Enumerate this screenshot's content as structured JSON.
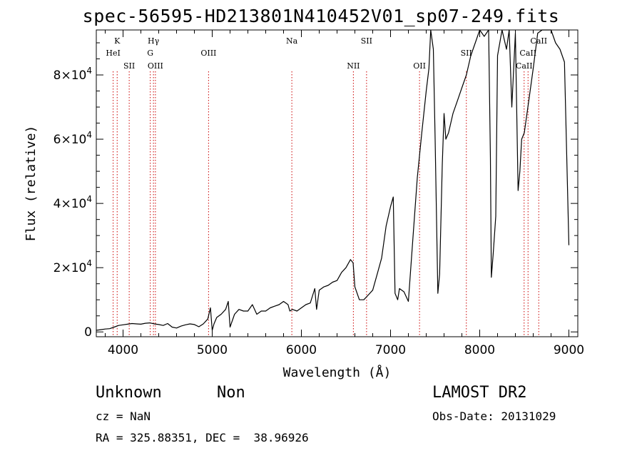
{
  "header": {
    "title": "spec-56595-HD213801N410452V01_sp07-249.fits"
  },
  "info": {
    "class_name": "Unknown",
    "subclass": "Non",
    "survey": "LAMOST DR2",
    "cz": "cz = NaN",
    "obs_date": "Obs-Date: 20131029",
    "coords": "RA = 325.88351, DEC =  38.96926"
  },
  "chart_data": {
    "type": "line",
    "title": "spec-56595-HD213801N410452V01_sp07-249.fits",
    "xlabel": "Wavelength (Å)",
    "ylabel": "Flux (relative)",
    "xlim": [
      3700,
      9100
    ],
    "ylim": [
      -1500,
      94000
    ],
    "grid": false,
    "x_ticks": [
      {
        "value": 4000,
        "label": "4000"
      },
      {
        "value": 5000,
        "label": "5000"
      },
      {
        "value": 6000,
        "label": "6000"
      },
      {
        "value": 7000,
        "label": "7000"
      },
      {
        "value": 8000,
        "label": "8000"
      },
      {
        "value": 9000,
        "label": "9000"
      }
    ],
    "y_ticks": [
      {
        "value": 0,
        "mant": "0",
        "exp": ""
      },
      {
        "value": 20000,
        "mant": "2×10",
        "exp": "4"
      },
      {
        "value": 40000,
        "mant": "4×10",
        "exp": "4"
      },
      {
        "value": 60000,
        "mant": "6×10",
        "exp": "4"
      },
      {
        "value": 80000,
        "mant": "8×10",
        "exp": "4"
      }
    ],
    "lines": [
      {
        "name": "K",
        "x": 3934,
        "row": 0
      },
      {
        "name": "HeI",
        "x": 3889,
        "row": 1
      },
      {
        "name": "SII",
        "x": 4069,
        "row": 2
      },
      {
        "name": "Hγ",
        "x": 4341,
        "row": 0
      },
      {
        "name": "G",
        "x": 4305,
        "row": 1
      },
      {
        "name": "OIII",
        "x": 4363,
        "row": 2
      },
      {
        "name": "OIII",
        "x": 4959,
        "row": 1
      },
      {
        "name": "Na",
        "x": 5893,
        "row": 0
      },
      {
        "name": "NII",
        "x": 6583,
        "row": 2
      },
      {
        "name": "SII",
        "x": 6731,
        "row": 0
      },
      {
        "name": "OII",
        "x": 7325,
        "row": 2
      },
      {
        "name": "SII",
        "x": 7850,
        "row": 1
      },
      {
        "name": "CaII",
        "x": 8498,
        "row": 2
      },
      {
        "name": "CaII",
        "x": 8542,
        "row": 1
      },
      {
        "name": "CaII",
        "x": 8662,
        "row": 0
      }
    ],
    "series": [
      {
        "x": [
          3700,
          3750,
          3800,
          3850,
          3900,
          3950,
          4000,
          4050,
          4100,
          4150,
          4200,
          4250,
          4300,
          4350,
          4400,
          4450,
          4500,
          4550,
          4600,
          4650,
          4700,
          4750,
          4800,
          4850,
          4900,
          4950,
          4980,
          5000,
          5020,
          5050,
          5100,
          5150,
          5180,
          5200,
          5250,
          5300,
          5350,
          5400,
          5450,
          5500,
          5550,
          5600,
          5650,
          5700,
          5750,
          5800,
          5850,
          5870,
          5900,
          5950,
          6000,
          6050,
          6100,
          6150,
          6170,
          6200,
          6250,
          6300,
          6350,
          6400,
          6450,
          6500,
          6550,
          6580,
          6600,
          6650,
          6700,
          6750,
          6800,
          6850,
          6900,
          6950,
          7000,
          7030,
          7050,
          7080,
          7100,
          7150,
          7200,
          7250,
          7300,
          7350,
          7400,
          7430,
          7450,
          7480,
          7500,
          7530,
          7550,
          7580,
          7600,
          7620,
          7650,
          7700,
          7750,
          7800,
          7850,
          7900,
          7950,
          8000,
          8050,
          8100,
          8120,
          8130,
          8150,
          8180,
          8200,
          8250,
          8300,
          8330,
          8360,
          8400,
          8430,
          8450,
          8470,
          8500,
          8550,
          8600,
          8650,
          8700,
          8800,
          8850,
          8900,
          8950,
          9000
        ],
        "values": [
          500,
          700,
          900,
          1000,
          1500,
          2000,
          2200,
          2400,
          2600,
          2500,
          2400,
          2700,
          2800,
          2500,
          2300,
          2000,
          2600,
          1500,
          1200,
          1800,
          2200,
          2500,
          2300,
          1600,
          2500,
          4000,
          7500,
          500,
          2500,
          4500,
          5500,
          7000,
          9500,
          1500,
          5500,
          7000,
          6500,
          6500,
          8500,
          5500,
          6500,
          6500,
          7500,
          8000,
          8500,
          9500,
          8500,
          6500,
          7000,
          6500,
          7500,
          8500,
          9000,
          13500,
          7000,
          13000,
          14000,
          14500,
          15500,
          16000,
          18500,
          20000,
          22500,
          21500,
          14000,
          10000,
          10000,
          11500,
          13000,
          18000,
          23000,
          33000,
          39000,
          42000,
          12000,
          10000,
          13500,
          12500,
          9500,
          29000,
          48000,
          62000,
          75000,
          82000,
          94000,
          88000,
          60000,
          12000,
          18000,
          52000,
          68000,
          60000,
          62000,
          68000,
          72000,
          76000,
          80000,
          86000,
          90000,
          94000,
          92000,
          94000,
          54000,
          17000,
          24000,
          36000,
          86000,
          94000,
          88000,
          94000,
          70000,
          93000,
          44000,
          50000,
          60000,
          62000,
          72000,
          82000,
          93000,
          94000,
          94000,
          90000,
          88000,
          84000,
          27000
        ]
      }
    ]
  }
}
